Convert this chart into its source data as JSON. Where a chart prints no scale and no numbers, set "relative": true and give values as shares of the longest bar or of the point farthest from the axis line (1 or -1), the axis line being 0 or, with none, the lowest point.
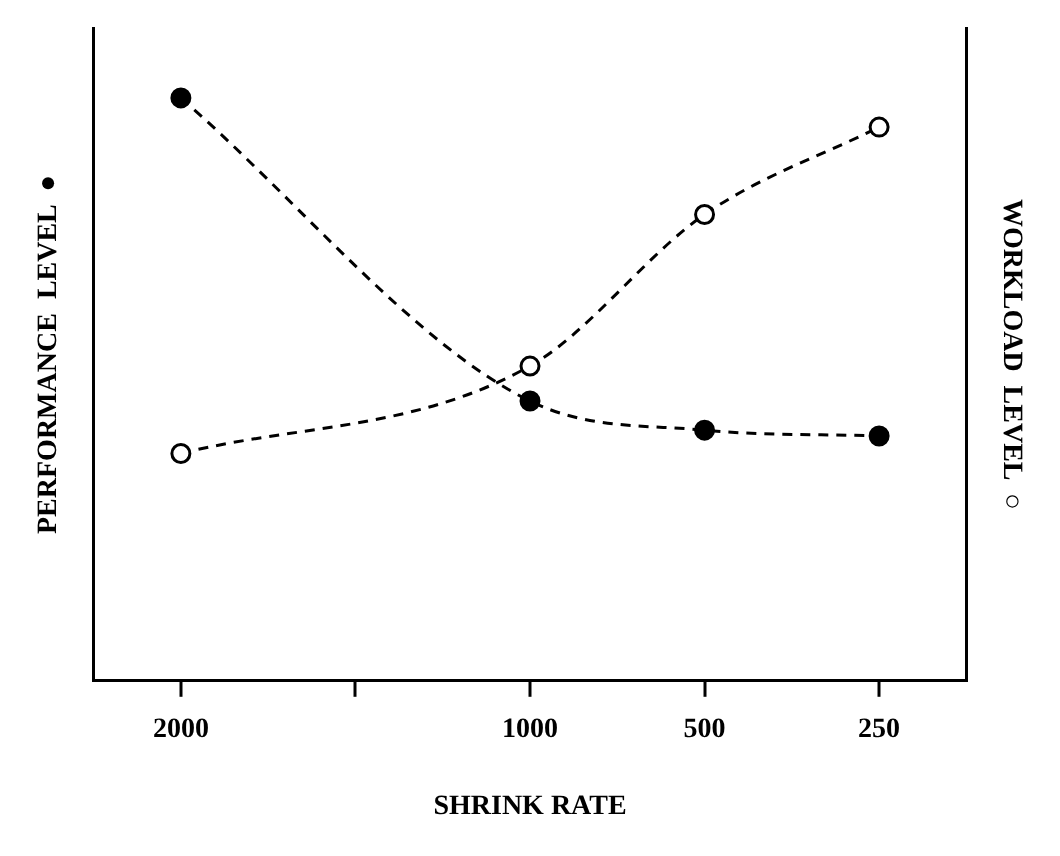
{
  "chart_data": {
    "type": "line",
    "xlabel": "SHRINK RATE",
    "ylabel": "PERFORMANCE  LEVEL  ●",
    "y2label": "WORKLOAD  LEVEL  ○",
    "categories": [
      "2000",
      null,
      "1000",
      "500",
      "250"
    ],
    "relative": true,
    "marker": "circle",
    "line_style": "dashed",
    "grid": false,
    "legend": false,
    "series": [
      {
        "color": "#000000",
        "values": [
          1,
          null,
          0.48,
          0.43,
          0.42
        ]
      },
      {
        "color": "#000000",
        "axis": "y2",
        "values": [
          0.39,
          null,
          0.54,
          0.8,
          0.95
        ]
      }
    ]
  }
}
